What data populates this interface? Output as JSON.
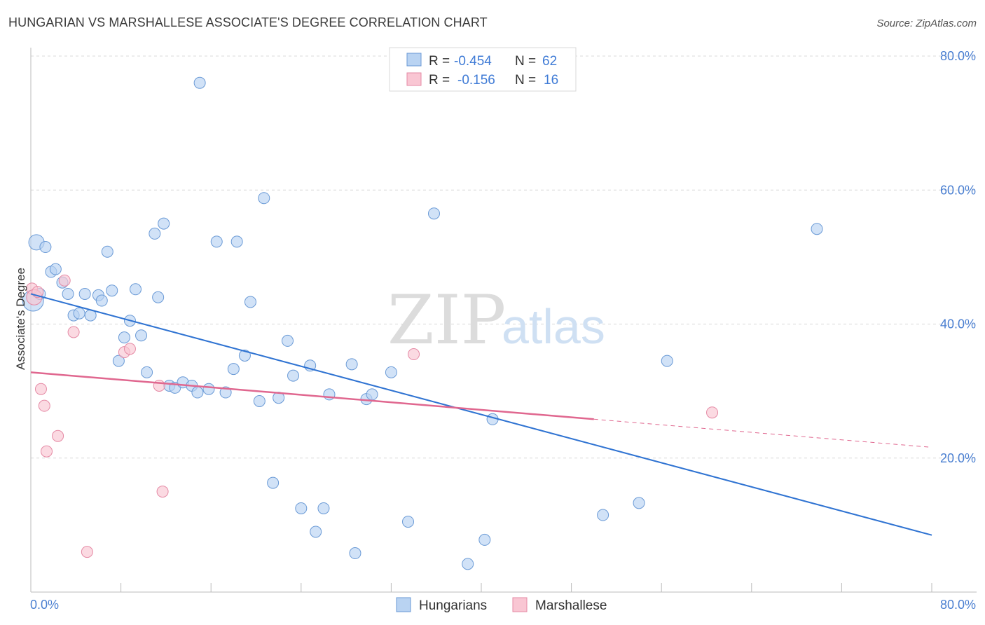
{
  "title": "HUNGARIAN VS MARSHALLESE ASSOCIATE'S DEGREE CORRELATION CHART",
  "source": "Source: ZipAtlas.com",
  "watermark": {
    "zip": "ZIP",
    "atlas": "atlas"
  },
  "colors": {
    "hungarians_fill": "#b9d3f2",
    "hungarians_stroke": "#6a9ad6",
    "hungarians_line": "#2f73d2",
    "marshallese_fill": "#f9c6d3",
    "marshallese_stroke": "#e58aa5",
    "marshallese_line": "#e0678f",
    "grid": "#d8d8d8",
    "axis_label": "#4a7fd1"
  },
  "legend": {
    "rows": [
      {
        "r_label": "R =",
        "r_value": "-0.454",
        "n_label": "N =",
        "n_value": "62"
      },
      {
        "r_label": "R =",
        "r_value": "-0.156",
        "n_label": "N =",
        "n_value": "16"
      }
    ]
  },
  "chart_data": {
    "type": "scatter",
    "title": "HUNGARIAN VS MARSHALLESE ASSOCIATE'S DEGREE CORRELATION CHART",
    "xlabel": "",
    "ylabel": "Associate's Degree",
    "xlim": [
      0,
      80
    ],
    "ylim": [
      0,
      80
    ],
    "x_tick_labels": [
      "0.0%",
      "80.0%"
    ],
    "y_ticks": [
      20,
      40,
      60,
      80
    ],
    "y_tick_labels": [
      "20.0%",
      "40.0%",
      "60.0%",
      "80.0%"
    ],
    "grid": true,
    "legend_position": "top-center",
    "series": [
      {
        "name": "Hungarians",
        "r": -0.454,
        "n": 62,
        "trend": {
          "x0": 0,
          "y0": 44.5,
          "x1": 80,
          "y1": 8.5
        },
        "points": [
          [
            0.2,
            43.5,
            3
          ],
          [
            0.5,
            52.2,
            2
          ],
          [
            0.8,
            44.5,
            1
          ],
          [
            1.3,
            51.5,
            1
          ],
          [
            1.8,
            47.8,
            1
          ],
          [
            2.2,
            48.2,
            1
          ],
          [
            2.8,
            46.2,
            1
          ],
          [
            3.3,
            44.5,
            1
          ],
          [
            3.8,
            41.3,
            1
          ],
          [
            4.3,
            41.6,
            1
          ],
          [
            4.8,
            44.5,
            1
          ],
          [
            5.3,
            41.3,
            1
          ],
          [
            6.0,
            44.3,
            1
          ],
          [
            6.3,
            43.5,
            1
          ],
          [
            6.8,
            50.8,
            1
          ],
          [
            7.2,
            45.0,
            1
          ],
          [
            7.8,
            34.5,
            1
          ],
          [
            8.3,
            38.0,
            1
          ],
          [
            8.8,
            40.5,
            1
          ],
          [
            9.3,
            45.2,
            1
          ],
          [
            9.8,
            38.3,
            1
          ],
          [
            10.3,
            32.8,
            1
          ],
          [
            11.0,
            53.5,
            1
          ],
          [
            11.3,
            44.0,
            1
          ],
          [
            11.8,
            55.0,
            1
          ],
          [
            12.3,
            30.8,
            1
          ],
          [
            12.8,
            30.5,
            1
          ],
          [
            13.5,
            31.3,
            1
          ],
          [
            14.3,
            30.8,
            1
          ],
          [
            14.8,
            29.8,
            1
          ],
          [
            15.0,
            76.0,
            1
          ],
          [
            15.8,
            30.3,
            1
          ],
          [
            16.5,
            52.3,
            1
          ],
          [
            17.3,
            29.8,
            1
          ],
          [
            18.0,
            33.3,
            1
          ],
          [
            18.3,
            52.3,
            1
          ],
          [
            19.0,
            35.3,
            1
          ],
          [
            19.5,
            43.3,
            1
          ],
          [
            20.3,
            28.5,
            1
          ],
          [
            20.7,
            58.8,
            1
          ],
          [
            21.5,
            16.3,
            1
          ],
          [
            22.0,
            29.0,
            1
          ],
          [
            22.8,
            37.5,
            1
          ],
          [
            23.3,
            32.3,
            1
          ],
          [
            24.0,
            12.5,
            1
          ],
          [
            24.8,
            33.8,
            1
          ],
          [
            25.3,
            9.0,
            1
          ],
          [
            26.0,
            12.5,
            1
          ],
          [
            26.5,
            29.5,
            1
          ],
          [
            28.5,
            34.0,
            1
          ],
          [
            28.8,
            5.8,
            1
          ],
          [
            29.8,
            28.8,
            1
          ],
          [
            30.3,
            29.5,
            1
          ],
          [
            32.0,
            32.8,
            1
          ],
          [
            33.5,
            10.5,
            1
          ],
          [
            35.8,
            56.5,
            1
          ],
          [
            38.8,
            4.2,
            1
          ],
          [
            40.3,
            7.8,
            1
          ],
          [
            41.0,
            25.8,
            1
          ],
          [
            50.8,
            11.5,
            1
          ],
          [
            54.0,
            13.3,
            1
          ],
          [
            56.5,
            34.5,
            1
          ],
          [
            69.8,
            54.2,
            1
          ]
        ]
      },
      {
        "name": "Marshallese",
        "r": -0.156,
        "n": 16,
        "trend": {
          "x0": 0,
          "y0": 32.8,
          "x1": 50,
          "y1": 25.8,
          "dashed_to_x": 80,
          "dashed_to_y": 21.6
        },
        "points": [
          [
            0.1,
            45.3,
            1
          ],
          [
            0.3,
            44.0,
            2
          ],
          [
            0.6,
            44.8,
            1
          ],
          [
            0.9,
            30.3,
            1
          ],
          [
            1.2,
            27.8,
            1
          ],
          [
            1.4,
            21.0,
            1
          ],
          [
            2.4,
            23.3,
            1
          ],
          [
            3.0,
            46.5,
            1
          ],
          [
            3.8,
            38.8,
            1
          ],
          [
            5.0,
            6.0,
            1
          ],
          [
            8.3,
            35.8,
            1
          ],
          [
            8.8,
            36.3,
            1
          ],
          [
            11.4,
            30.8,
            1
          ],
          [
            11.7,
            15.0,
            1
          ],
          [
            34.0,
            35.5,
            1
          ],
          [
            60.5,
            26.8,
            1
          ]
        ]
      }
    ]
  }
}
